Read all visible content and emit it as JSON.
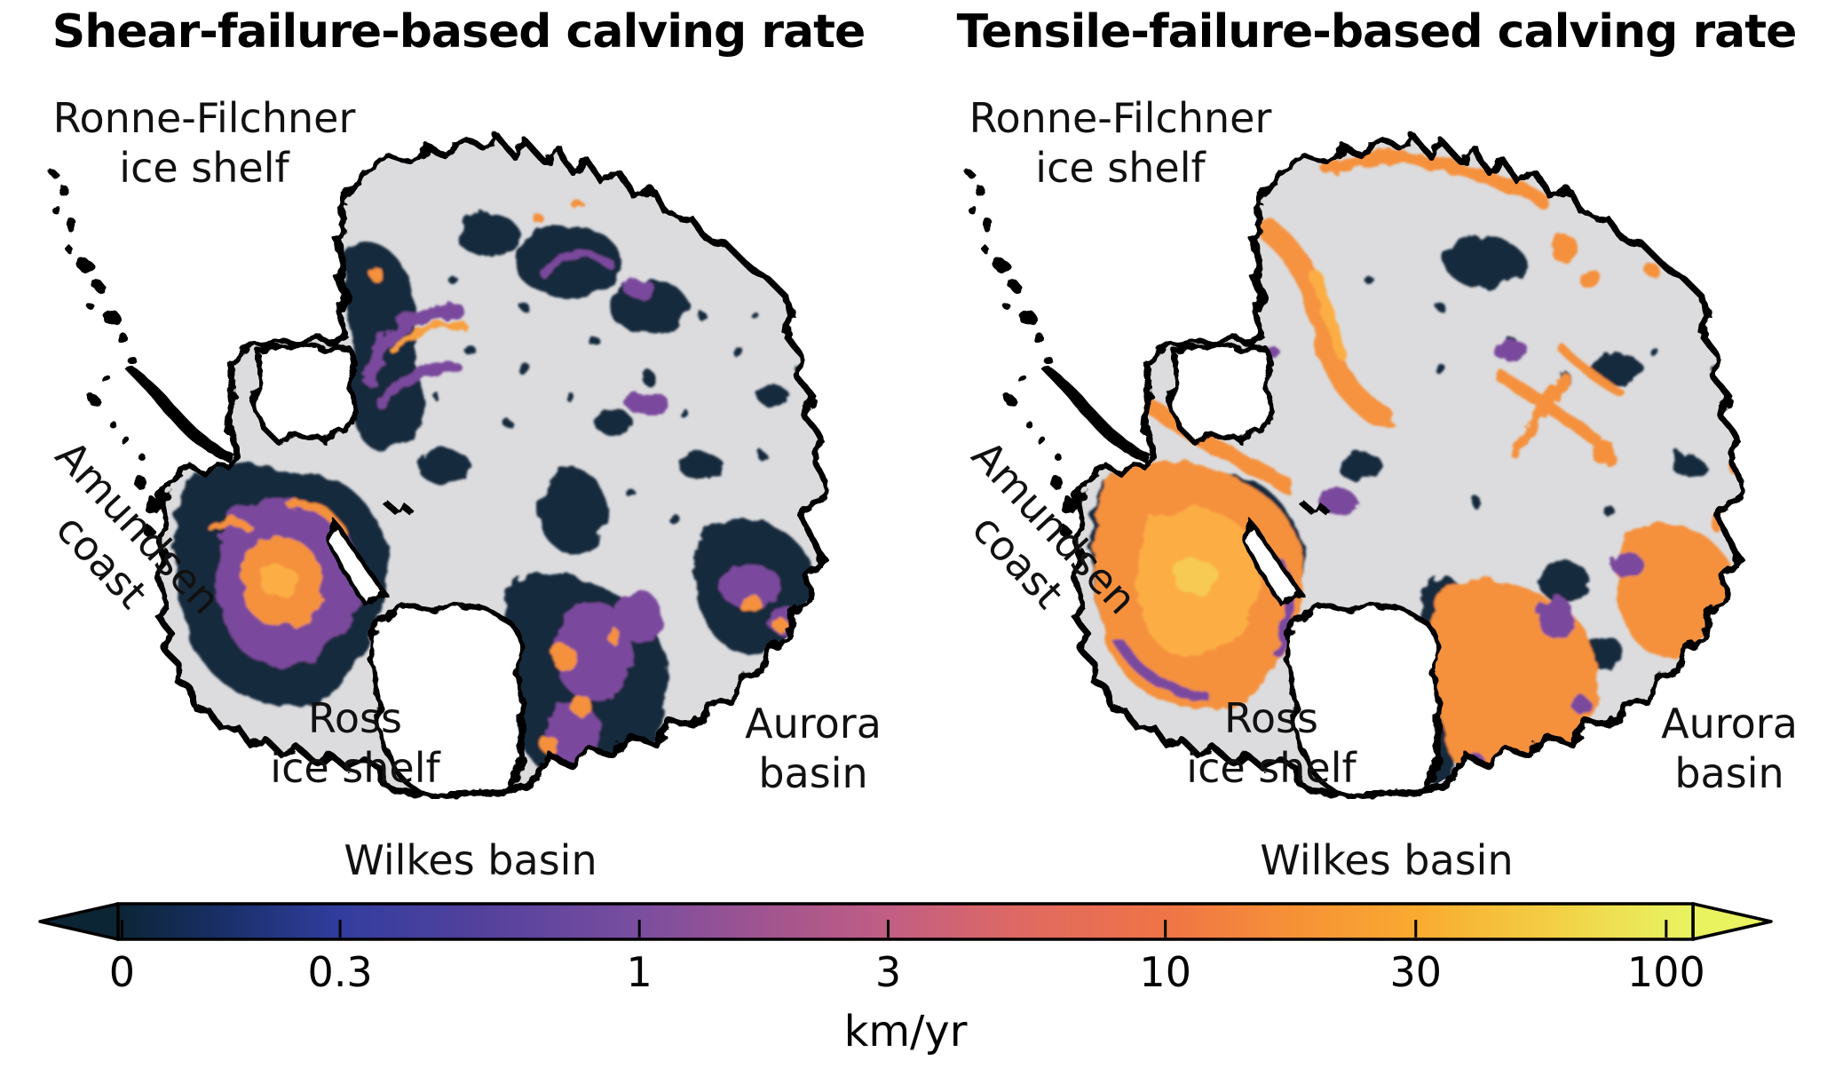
{
  "titles": {
    "left": "Shear-failure-based calving rate",
    "right": "Tensile-failure-based calving rate"
  },
  "region_labels": {
    "ronne_line1": "Ronne-Filchner",
    "ronne_line2": "ice shelf",
    "amundsen_line1": "Amundsen",
    "amundsen_line2": "coast",
    "ross_line1": "Ross",
    "ross_line2": "ice shelf",
    "aurora_line1": "Aurora",
    "aurora_line2": "basin",
    "wilkes": "Wilkes basin"
  },
  "colorbar": {
    "unit": "km/yr",
    "scale": "log-like",
    "extend": "both",
    "ticks": [
      {
        "label": "0",
        "pct": 0.25
      },
      {
        "label": "0.3",
        "pct": 14.1
      },
      {
        "label": "1",
        "pct": 33.1
      },
      {
        "label": "3",
        "pct": 48.9
      },
      {
        "label": "10",
        "pct": 66.5
      },
      {
        "label": "30",
        "pct": 82.4
      },
      {
        "label": "100",
        "pct": 98.3
      }
    ],
    "gradient_stops": [
      {
        "pct": 0,
        "color": "#0c2535"
      },
      {
        "pct": 7,
        "color": "#1a306b"
      },
      {
        "pct": 14.1,
        "color": "#323d9e"
      },
      {
        "pct": 23,
        "color": "#53419d"
      },
      {
        "pct": 33.1,
        "color": "#7a4e9f"
      },
      {
        "pct": 41,
        "color": "#a0548f"
      },
      {
        "pct": 48.9,
        "color": "#c25e84"
      },
      {
        "pct": 58,
        "color": "#e16a60"
      },
      {
        "pct": 66.5,
        "color": "#ef7446"
      },
      {
        "pct": 74,
        "color": "#f68f37"
      },
      {
        "pct": 82.4,
        "color": "#f9aa30"
      },
      {
        "pct": 91,
        "color": "#f3cf44"
      },
      {
        "pct": 98.3,
        "color": "#eaee5e"
      },
      {
        "pct": 100,
        "color": "#e9f25f"
      }
    ]
  },
  "map_colors": {
    "ice_interior_gray": "#dcdcde",
    "ice_shelf_white": "#ffffff",
    "coastline_black": "#000000",
    "low_rate_navy": "#15293c",
    "mid_rate_purple": "#7a4a9d",
    "mid_rate_pink": "#c25e84",
    "high_rate_orange": "#f5913e",
    "very_high_orange": "#fcae45",
    "max_rate_yellow": "#e9f25f"
  }
}
